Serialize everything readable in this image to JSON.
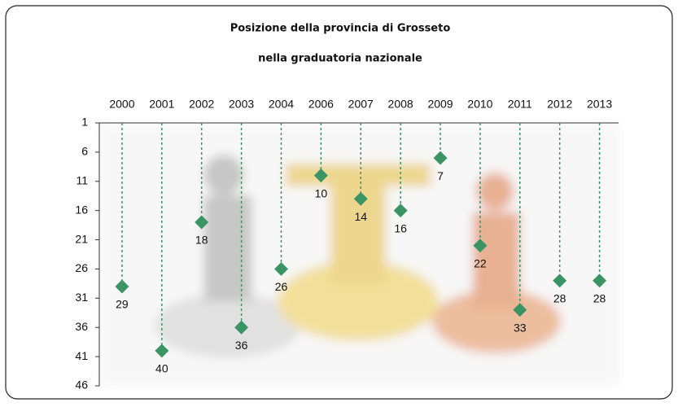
{
  "chart_data": {
    "type": "dot",
    "title": [
      "Posizione della provincia di Grosseto",
      "nella graduatoria nazionale"
    ],
    "categories": [
      "2000",
      "2001",
      "2002",
      "2003",
      "2004",
      "2006",
      "2007",
      "2008",
      "2009",
      "2010",
      "2011",
      "2012",
      "2013"
    ],
    "values": [
      29,
      40,
      18,
      36,
      26,
      10,
      14,
      16,
      7,
      22,
      33,
      28,
      28
    ],
    "color": "#3a9464",
    "ylim": [
      1,
      46
    ],
    "yticks": [
      1,
      6,
      11,
      16,
      21,
      26,
      31,
      36,
      41,
      46
    ],
    "y_reversed": true,
    "droplines": true,
    "data_labels": true
  }
}
